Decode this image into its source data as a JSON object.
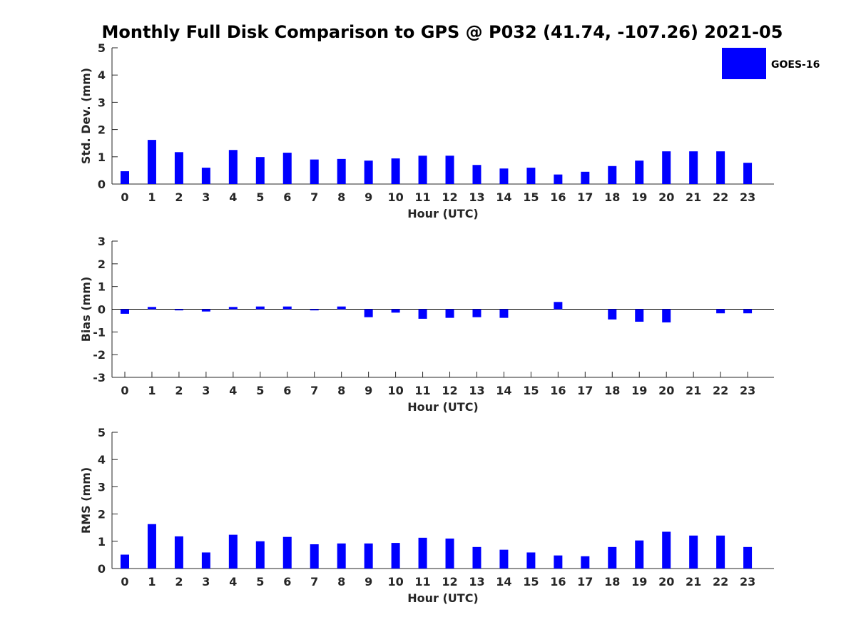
{
  "title": "Monthly Full Disk Comparison to GPS @ P032 (41.74, -107.26) 2021-05",
  "legend": {
    "label": "GOES-16"
  },
  "colors": {
    "bar": "#0000ff",
    "axis": "#262626",
    "zero_line": "#000000"
  },
  "chart_data": [
    {
      "type": "bar",
      "xlabel": "Hour (UTC)",
      "ylabel": "Std. Dev. (mm)",
      "ylim": [
        0,
        5
      ],
      "yticks": [
        0,
        1,
        2,
        3,
        4,
        5
      ],
      "categories": [
        "0",
        "1",
        "2",
        "3",
        "4",
        "5",
        "6",
        "7",
        "8",
        "9",
        "10",
        "11",
        "12",
        "13",
        "14",
        "15",
        "16",
        "17",
        "18",
        "19",
        "20",
        "21",
        "22",
        "23"
      ],
      "series": [
        {
          "name": "GOES-16",
          "values": [
            0.47,
            1.62,
            1.17,
            0.6,
            1.25,
            0.99,
            1.15,
            0.9,
            0.92,
            0.86,
            0.94,
            1.04,
            1.04,
            0.7,
            0.57,
            0.6,
            0.35,
            0.45,
            0.66,
            0.86,
            1.2,
            1.2,
            1.2,
            0.78
          ]
        }
      ]
    },
    {
      "type": "bar",
      "xlabel": "Hour (UTC)",
      "ylabel": "Bias (mm)",
      "ylim": [
        -3,
        3
      ],
      "yticks": [
        -3,
        -2,
        -1,
        0,
        1,
        2,
        3
      ],
      "categories": [
        "0",
        "1",
        "2",
        "3",
        "4",
        "5",
        "6",
        "7",
        "8",
        "9",
        "10",
        "11",
        "12",
        "13",
        "14",
        "15",
        "16",
        "17",
        "18",
        "19",
        "20",
        "21",
        "22",
        "23"
      ],
      "series": [
        {
          "name": "GOES-16",
          "values": [
            -0.2,
            0.1,
            -0.05,
            -0.1,
            0.1,
            0.12,
            0.12,
            -0.05,
            0.12,
            -0.35,
            -0.15,
            -0.42,
            -0.38,
            -0.35,
            -0.38,
            0.0,
            0.32,
            0.0,
            -0.45,
            -0.55,
            -0.58,
            0.0,
            -0.18,
            -0.18
          ]
        }
      ]
    },
    {
      "type": "bar",
      "xlabel": "Hour (UTC)",
      "ylabel": "RMS (mm)",
      "ylim": [
        0,
        5
      ],
      "yticks": [
        0,
        1,
        2,
        3,
        4,
        5
      ],
      "categories": [
        "0",
        "1",
        "2",
        "3",
        "4",
        "5",
        "6",
        "7",
        "8",
        "9",
        "10",
        "11",
        "12",
        "13",
        "14",
        "15",
        "16",
        "17",
        "18",
        "19",
        "20",
        "21",
        "22",
        "23"
      ],
      "series": [
        {
          "name": "GOES-16",
          "values": [
            0.51,
            1.63,
            1.18,
            0.59,
            1.24,
            1.0,
            1.16,
            0.89,
            0.92,
            0.92,
            0.94,
            1.13,
            1.1,
            0.79,
            0.69,
            0.59,
            0.48,
            0.45,
            0.79,
            1.03,
            1.35,
            1.21,
            1.21,
            0.79
          ]
        }
      ]
    }
  ]
}
